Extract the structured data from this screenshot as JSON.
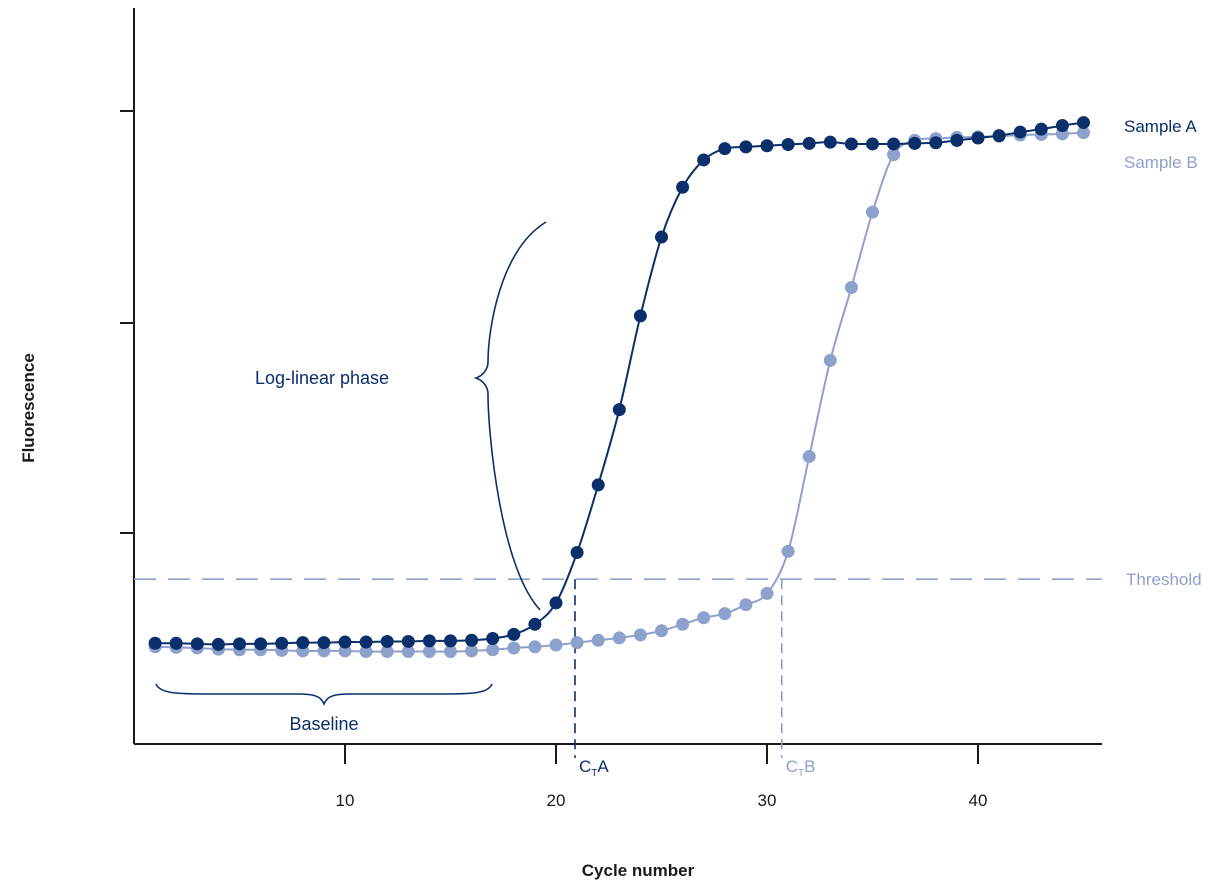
{
  "chart_data": {
    "type": "scatter",
    "title": "",
    "xlabel": "Cycle number",
    "ylabel": "Fluorescence",
    "xlim": [
      0,
      45
    ],
    "ylim": [
      0,
      100
    ],
    "x_ticks": [
      10,
      20,
      30,
      40
    ],
    "y_ticks_count": 4,
    "grid": false,
    "series": [
      {
        "name": "Sample A",
        "color": "#0b2f6b",
        "x": [
          1,
          2,
          3,
          4,
          5,
          6,
          7,
          8,
          9,
          10,
          11,
          12,
          13,
          14,
          15,
          16,
          17,
          18,
          19,
          20,
          21,
          22,
          23,
          24,
          25,
          26,
          27,
          28,
          29,
          30,
          31,
          32,
          33,
          34,
          35,
          36,
          37,
          38,
          39,
          40,
          41,
          42,
          43,
          44,
          45
        ],
        "y": [
          13.5,
          13.5,
          13.4,
          13.3,
          13.4,
          13.4,
          13.5,
          13.6,
          13.6,
          13.7,
          13.7,
          13.8,
          13.8,
          13.9,
          13.9,
          14.0,
          14.3,
          15.0,
          16.7,
          20.3,
          28.8,
          40.2,
          52.9,
          68.7,
          82.0,
          90.4,
          95.0,
          96.9,
          97.2,
          97.4,
          97.6,
          97.8,
          98.0,
          97.7,
          97.7,
          97.7,
          97.8,
          97.9,
          98.3,
          98.7,
          99.1,
          99.7,
          100.2,
          100.8,
          101.3
        ]
      },
      {
        "name": "Sample B",
        "color": "#8ea0cc",
        "x": [
          1,
          2,
          3,
          4,
          5,
          6,
          7,
          8,
          9,
          10,
          11,
          12,
          13,
          14,
          15,
          16,
          17,
          18,
          19,
          20,
          21,
          22,
          23,
          24,
          25,
          26,
          27,
          28,
          29,
          30,
          31,
          32,
          33,
          34,
          35,
          36,
          37,
          38,
          39,
          40,
          41,
          42,
          43,
          44,
          45
        ],
        "y": [
          12.9,
          12.8,
          12.7,
          12.5,
          12.4,
          12.4,
          12.3,
          12.2,
          12.2,
          12.2,
          12.1,
          12.1,
          12.1,
          12.1,
          12.1,
          12.2,
          12.4,
          12.7,
          12.9,
          13.2,
          13.6,
          14.0,
          14.4,
          14.9,
          15.6,
          16.7,
          17.8,
          18.5,
          20.0,
          21.9,
          29.0,
          45.0,
          61.2,
          73.5,
          86.2,
          95.9,
          98.3,
          98.6,
          98.8,
          98.9,
          99.0,
          99.2,
          99.3,
          99.4,
          99.6
        ]
      }
    ],
    "threshold": {
      "label": "Threshold",
      "y": 24.3
    },
    "ct_markers": [
      {
        "base": "C",
        "subscript": "T",
        "suffix": "A",
        "x": 20.9,
        "color": "#0b2f6b"
      },
      {
        "base": "C",
        "subscript": "T",
        "suffix": "B",
        "x": 30.7,
        "color": "#8ea0cc"
      }
    ],
    "annotations": {
      "log_linear": "Log-linear phase",
      "baseline": "Baseline"
    }
  }
}
